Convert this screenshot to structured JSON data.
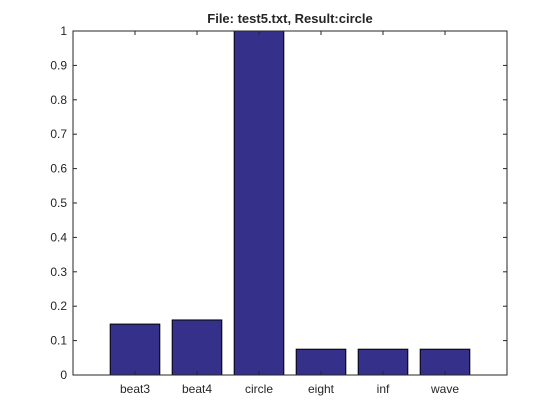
{
  "chart_data": {
    "type": "bar",
    "title": "File: test5.txt, Result:circle",
    "xlabel": "",
    "ylabel": "",
    "categories": [
      "beat3",
      "beat4",
      "circle",
      "eight",
      "inf",
      "wave"
    ],
    "values": [
      0.148,
      0.16,
      1.0,
      0.075,
      0.075,
      0.075
    ],
    "ylim": [
      0,
      1
    ],
    "yticks": [
      "0",
      "0.1",
      "0.2",
      "0.3",
      "0.4",
      "0.5",
      "0.6",
      "0.7",
      "0.8",
      "0.9",
      "1"
    ],
    "grid": false,
    "legend": "none",
    "bar_color": "#35308a",
    "edge_color": "#000000"
  }
}
